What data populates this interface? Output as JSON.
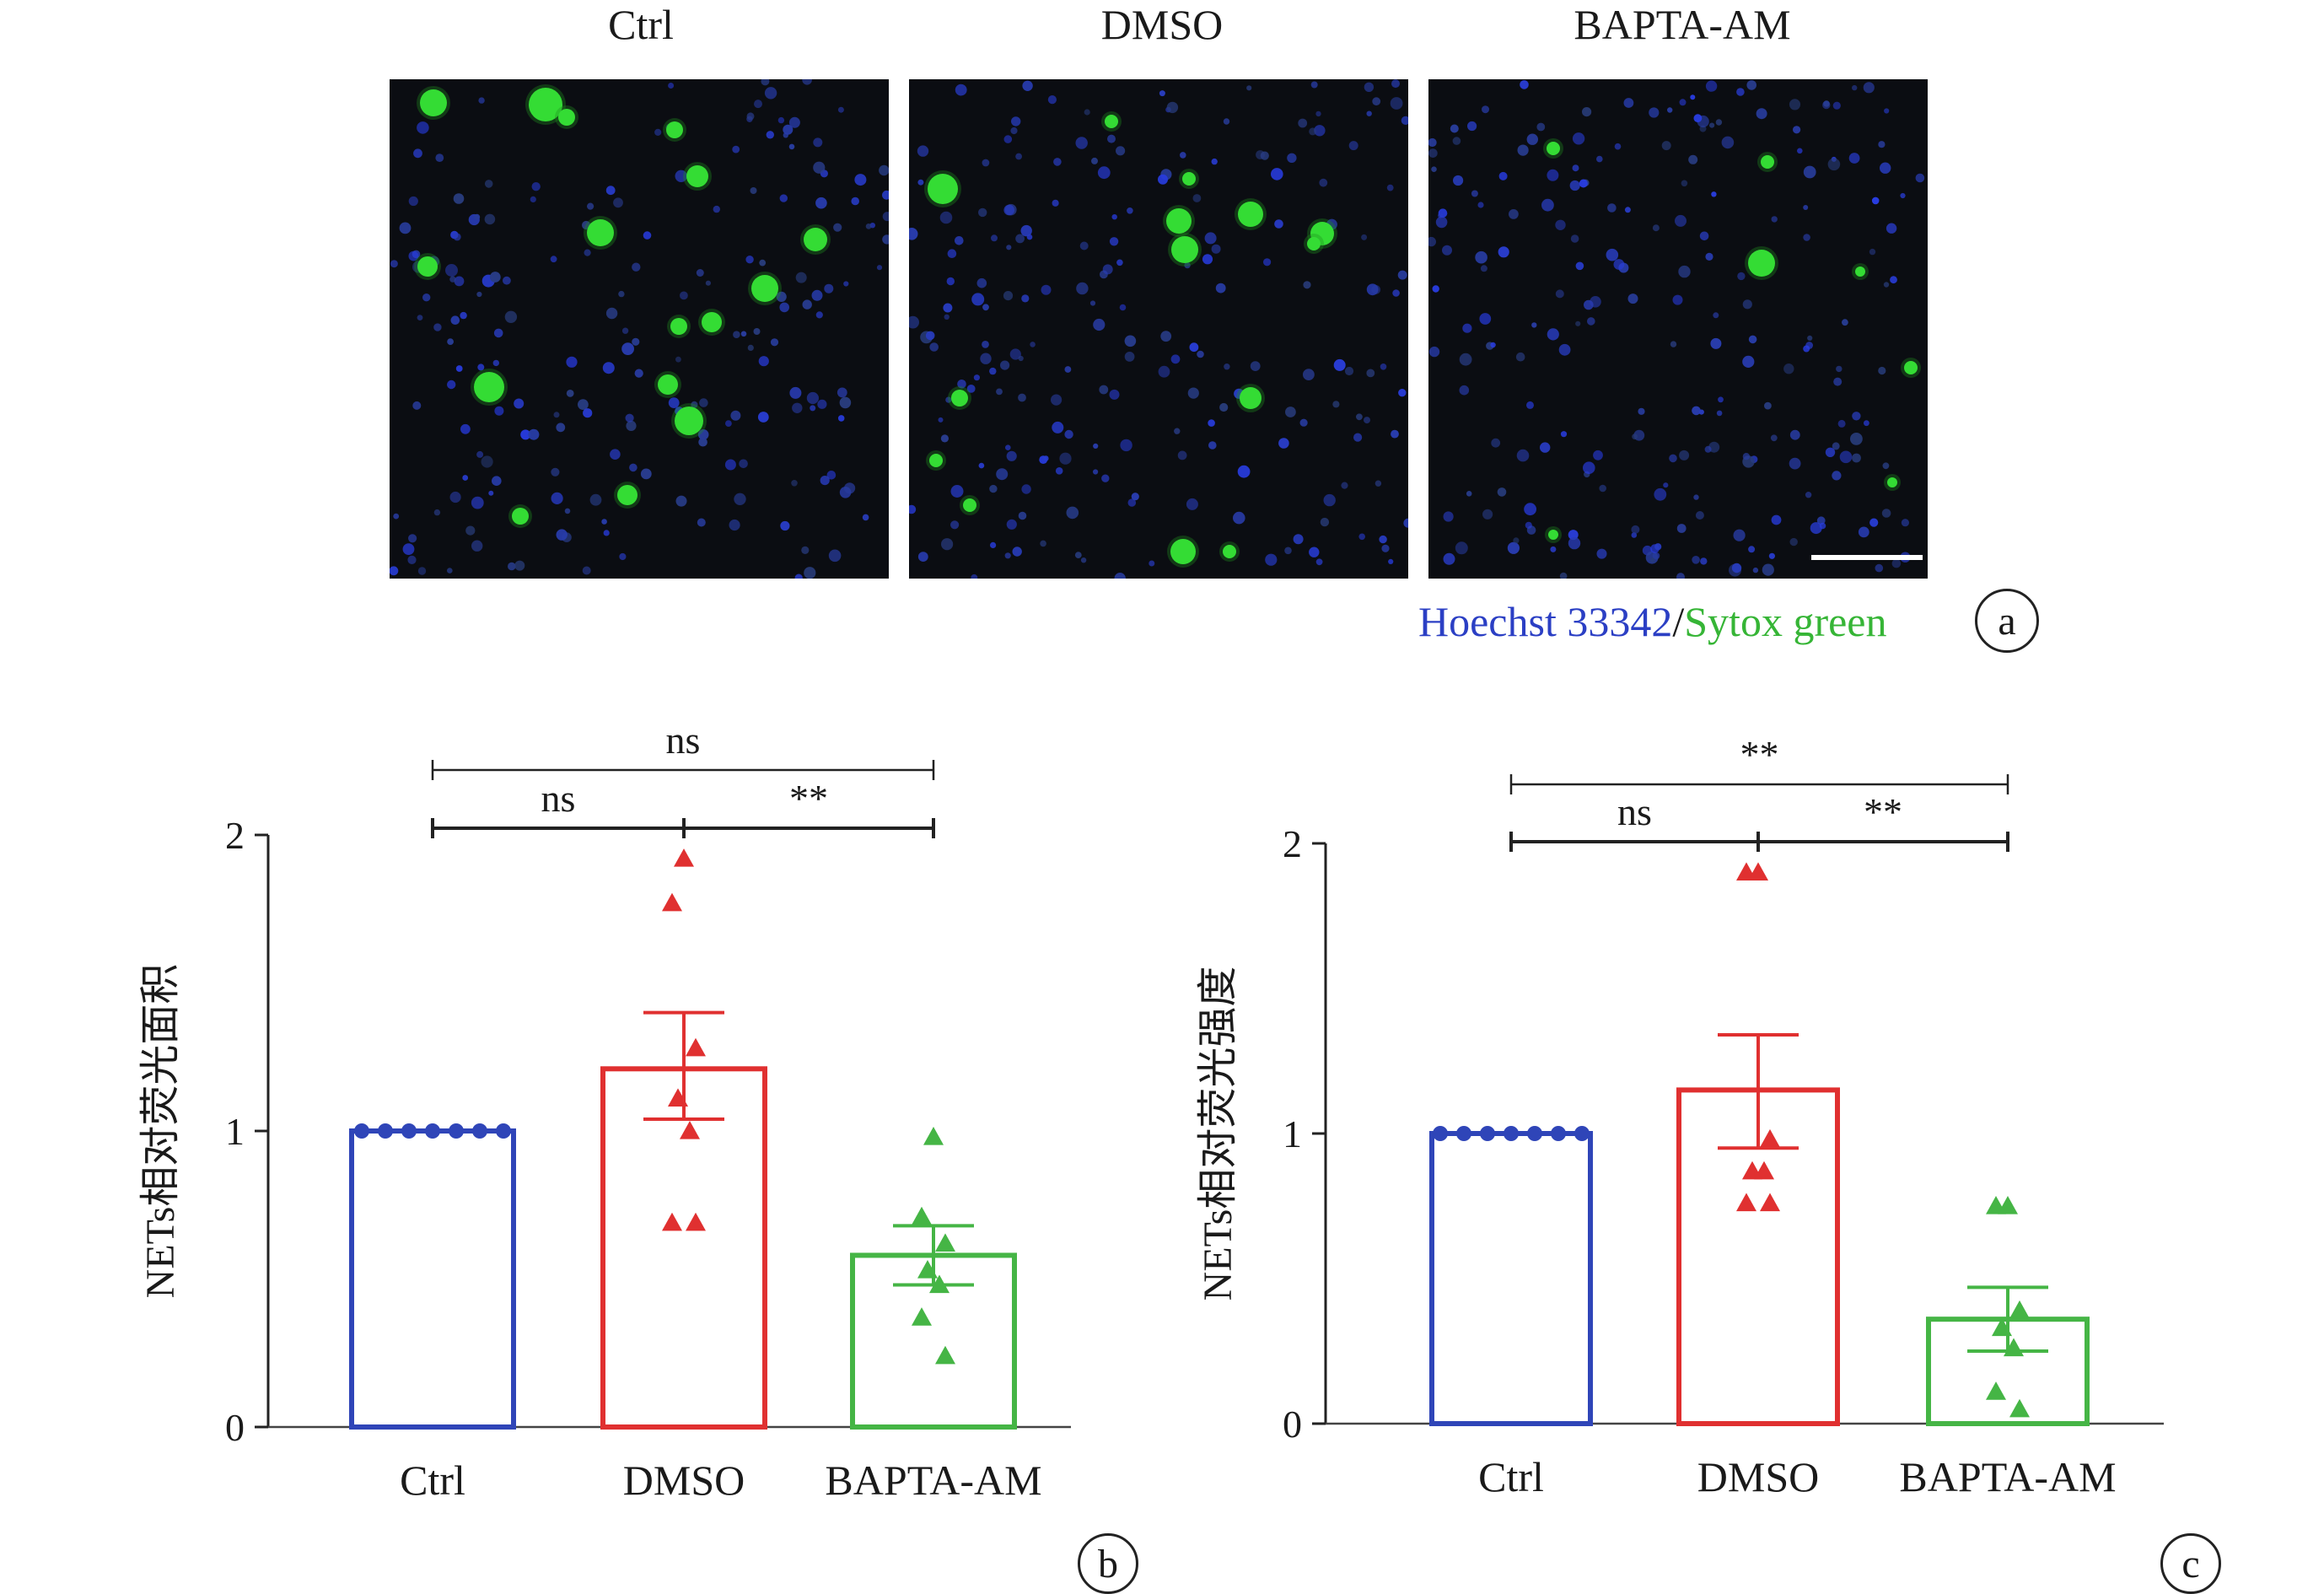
{
  "panel_a": {
    "titles": [
      "Ctrl",
      "DMSO",
      "BAPTA-AM"
    ],
    "legend_blue": "Hoechst 33342",
    "legend_sep": "/",
    "legend_green": "Sytox green",
    "label": "a",
    "colors": {
      "blue_stain": "#3a4fd8",
      "green_stain": "#2fd52f",
      "background": "#0b0d12"
    }
  },
  "chart_data": [
    {
      "type": "bar",
      "panel_label": "b",
      "categories": [
        "Ctrl",
        "DMSO",
        "BAPTA-AM"
      ],
      "ylabel": "NETs相对荧光面积",
      "yticks": [
        0,
        1,
        2
      ],
      "ylim": [
        0,
        2
      ],
      "values": [
        1.0,
        1.21,
        0.58
      ],
      "error_upper": [
        1.0,
        1.4,
        0.68
      ],
      "error_lower": [
        1.0,
        1.04,
        0.48
      ],
      "points": [
        [
          1,
          1,
          1,
          1,
          1,
          1,
          1
        ],
        [
          1.92,
          1.77,
          1.28,
          1.11,
          1.0,
          0.69,
          0.69
        ],
        [
          0.98,
          0.71,
          0.62,
          0.53,
          0.48,
          0.37,
          0.24
        ]
      ],
      "colors": [
        "#2f45b8",
        "#e03030",
        "#45b545"
      ],
      "markers": [
        "circle",
        "triangle",
        "triangle"
      ],
      "significance": [
        {
          "from": 0,
          "to": 2,
          "label": "ns",
          "level": 2
        },
        {
          "from": 0,
          "to": 1,
          "label": "ns",
          "level": 1
        },
        {
          "from": 1,
          "to": 2,
          "label": "**",
          "level": 1
        }
      ]
    },
    {
      "type": "bar",
      "panel_label": "c",
      "categories": [
        "Ctrl",
        "DMSO",
        "BAPTA-AM"
      ],
      "ylabel": "NETs相对荧光强度",
      "yticks": [
        0,
        1,
        2
      ],
      "ylim": [
        0,
        2
      ],
      "values": [
        1.0,
        1.15,
        0.36
      ],
      "error_upper": [
        1.0,
        1.34,
        0.47
      ],
      "error_lower": [
        1.0,
        0.95,
        0.25
      ],
      "points": [
        [
          1,
          1,
          1,
          1,
          1,
          1,
          1
        ],
        [
          1.9,
          1.9,
          0.98,
          0.87,
          0.87,
          0.76,
          0.76
        ],
        [
          0.75,
          0.75,
          0.39,
          0.33,
          0.26,
          0.11,
          0.05
        ]
      ],
      "colors": [
        "#2f45b8",
        "#e03030",
        "#45b545"
      ],
      "markers": [
        "circle",
        "triangle",
        "triangle"
      ],
      "significance": [
        {
          "from": 0,
          "to": 2,
          "label": "**",
          "level": 2
        },
        {
          "from": 0,
          "to": 1,
          "label": "ns",
          "level": 1
        },
        {
          "from": 1,
          "to": 2,
          "label": "**",
          "level": 1
        }
      ]
    }
  ]
}
